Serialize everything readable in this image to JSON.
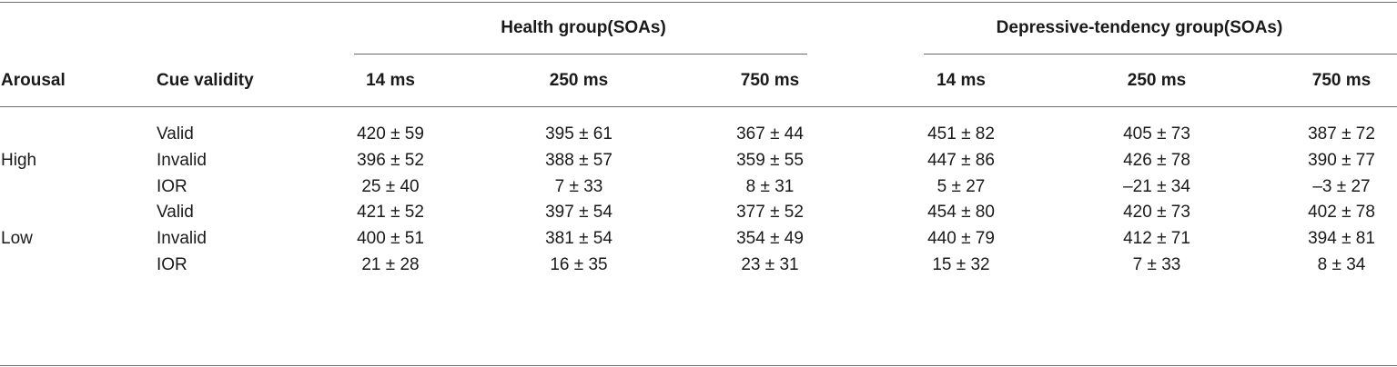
{
  "table": {
    "group_headers": [
      "Health group(SOAs)",
      "Depressive-tendency group(SOAs)"
    ],
    "column_headers": [
      "Arousal",
      "Cue validity",
      "14 ms",
      "250 ms",
      "750 ms",
      "14 ms",
      "250 ms",
      "750 ms"
    ],
    "arousal_labels": [
      "High",
      "Low"
    ],
    "rows": [
      {
        "cue": "Valid",
        "values": [
          "420 ± 59",
          "395 ± 61",
          "367 ± 44",
          "451 ± 82",
          "405 ± 73",
          "387 ± 72"
        ]
      },
      {
        "cue": "Invalid",
        "values": [
          "396 ± 52",
          "388 ± 57",
          "359 ± 55",
          "447 ± 86",
          "426 ± 78",
          "390 ± 77"
        ]
      },
      {
        "cue": "IOR",
        "values": [
          "25 ± 40",
          "7 ± 33",
          "8 ± 31",
          "5 ± 27",
          "–21 ± 34",
          "–3 ± 27"
        ]
      },
      {
        "cue": "Valid",
        "values": [
          "421 ± 52",
          "397 ± 54",
          "377 ± 52",
          "454 ± 80",
          "420 ± 73",
          "402 ± 78"
        ]
      },
      {
        "cue": "Invalid",
        "values": [
          "400 ± 51",
          "381 ± 54",
          "354 ± 49",
          "440 ± 79",
          "412 ± 71",
          "394 ± 81"
        ]
      },
      {
        "cue": "IOR",
        "values": [
          "21 ± 28",
          "16 ± 35",
          "23 ± 31",
          "15 ± 32",
          "7 ± 33",
          "8 ± 34"
        ]
      }
    ]
  }
}
